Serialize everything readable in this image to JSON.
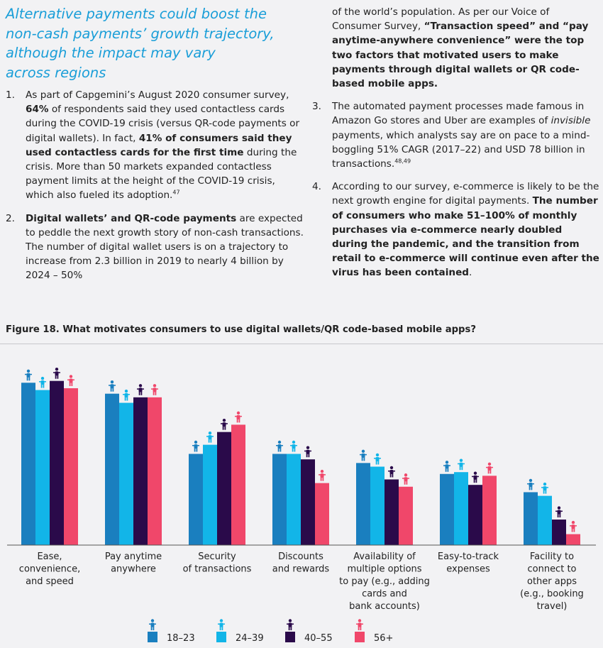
{
  "heading": {
    "line1": "Alternative payments could boost the",
    "line2": "non-cash payments’ growth trajectory,",
    "line3": "although the impact may vary",
    "line4": "across regions"
  },
  "points": {
    "p1": {
      "num": "1.",
      "a": "As part of Capgemini’s August 2020 consumer survey, ",
      "b": "64%",
      "c": " of respondents said they used contactless cards during the COVID-19 crisis (versus QR-code payments or digital wallets). In fact, ",
      "d": "41% of consumers said they used contactless cards for the first time",
      "e": " during the crisis. More than 50 markets expanded contactless payment limits at the height of the COVID-19 crisis, which also fueled its adoption.",
      "sup": "47"
    },
    "p2": {
      "num": "2.",
      "a": "Digital wallets’ and QR-code payments",
      "b": " are expected to peddle the next growth story of non-cash transactions. The number of digital wallet users is on a trajectory to increase from 2.3 billion in 2019 to nearly 4 billion by 2024 – 50%",
      "c": "of the world’s population. As per our Voice of Consumer Survey, ",
      "d": "“Transaction speed” and “pay anytime-anywhere convenience” were the top two factors that motivated users to make payments through digital wallets or QR code-based mobile apps."
    },
    "p3": {
      "num": "3.",
      "a": "The automated payment processes made famous in Amazon Go stores and Uber are examples of ",
      "b": "invisible",
      "c": " payments, which analysts say are on pace to a mind-boggling 51% CAGR (2017–22) and USD 78 billion in transactions.",
      "sup": "48,49"
    },
    "p4": {
      "num": "4.",
      "a": "According to our survey, e-commerce is likely to be the next growth engine for digital payments. ",
      "b": "The number of consumers who make 51–100% of monthly purchases via e-commerce nearly doubled during the pandemic, and the transition from retail to e-commerce will continue even after the virus has been contained",
      "c": "."
    }
  },
  "figure_title": "Figure 18. What motivates consumers to use digital wallets/QR code-based mobile apps?",
  "chart_data": {
    "type": "bar",
    "title": "Figure 18. What motivates consumers to use digital wallets/QR code-based mobile apps?",
    "categories": [
      [
        "Ease,",
        "convenience,",
        "and speed"
      ],
      [
        "Pay anytime",
        "anywhere"
      ],
      [
        "Security",
        "of transactions"
      ],
      [
        "Discounts",
        "and rewards"
      ],
      [
        "Availability of",
        "multiple options",
        "to pay (e.g., adding",
        "cards and",
        "bank accounts)"
      ],
      [
        "Easy-to-track",
        "expenses"
      ],
      [
        "Facility to",
        "connect to",
        "other apps",
        "(e.g., booking",
        "travel)"
      ]
    ],
    "series": [
      {
        "name": "18–23",
        "color": "#1a7fbf",
        "values": [
          89,
          83,
          50,
          50,
          45,
          39,
          29
        ]
      },
      {
        "name": "24–39",
        "color": "#12b5e8",
        "values": [
          85,
          78,
          55,
          50,
          43,
          40,
          27
        ]
      },
      {
        "name": "40–55",
        "color": "#2a0a4a",
        "values": [
          90,
          81,
          62,
          47,
          36,
          33,
          14
        ]
      },
      {
        "name": "56+",
        "color": "#f0476a",
        "values": [
          86,
          81,
          66,
          34,
          32,
          38,
          6
        ]
      }
    ],
    "ylim": [
      0,
      100
    ],
    "grid": false,
    "legend": "bottom",
    "icon": "person-icon"
  }
}
